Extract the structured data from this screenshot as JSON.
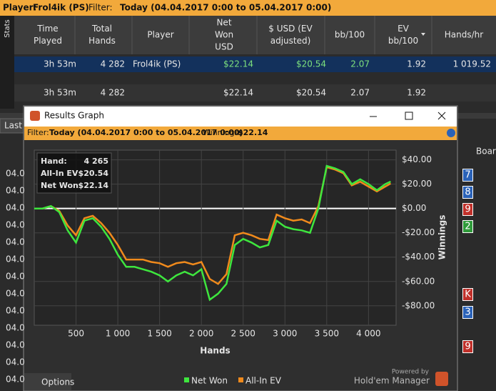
{
  "top_bar": {
    "player_label": "Player:",
    "player": "Frol4ik (PS)",
    "filter_label": "Filter:",
    "filter": "Today (04.04.2017 0:00 to 05.04.2017 0:00)"
  },
  "side_tab": "Stats",
  "table": {
    "columns": [
      [
        "Time",
        "Played"
      ],
      [
        "Total",
        "Hands"
      ],
      [
        "Player"
      ],
      [
        "Net",
        "Won",
        "USD"
      ],
      [
        "$ USD (EV",
        "adjusted)"
      ],
      [
        "bb/100"
      ],
      [
        "EV",
        "bb/100"
      ],
      [
        "Hands/hr"
      ]
    ],
    "rows": [
      [
        "3h 53m",
        "4 282",
        "Frol4ik (PS)",
        "$22.14",
        "$20.54",
        "2.07",
        "1.92",
        "1 019.52"
      ],
      [
        "3h 53m",
        "4 282",
        null,
        "$22.14",
        "$20.54",
        "2.07",
        "1.92",
        null
      ]
    ]
  },
  "lower_tab": "Last",
  "dates": [
    "04.0",
    "04.0",
    "04.0",
    "04.0",
    "04.0",
    "04.0",
    "04.0",
    "04.0",
    "04.0",
    "04.0",
    "04.0",
    "04.0",
    "04.0"
  ],
  "board_header": "Boar",
  "cards": [
    {
      "rank": "7",
      "color": "#2a62b8"
    },
    {
      "rank": "8",
      "color": "#2a62b8"
    },
    {
      "rank": "9",
      "color": "#c0302a"
    },
    {
      "rank": "2",
      "color": "#2f9a3a"
    },
    {
      "rank": "K",
      "color": "#c0302a"
    },
    {
      "rank": "3",
      "color": "#2a62b8"
    },
    {
      "rank": "9",
      "color": "#c0302a"
    }
  ],
  "window": {
    "title": "Results Graph",
    "filter_label": "Filter:",
    "filter": "Today (04.04.2017 0:00 to 05.04.2017 0:00)",
    "winnings_label": "Winnings:",
    "winnings": "$22.14",
    "options": "Options",
    "powered_by": "Powered by",
    "brand": "Hold'em Manager"
  },
  "chart_data": {
    "type": "line",
    "xlabel": "Hands",
    "ylabel": "Winnings",
    "x": [
      0,
      100,
      200,
      300,
      400,
      500,
      600,
      700,
      800,
      900,
      1000,
      1100,
      1200,
      1300,
      1400,
      1500,
      1600,
      1700,
      1800,
      1900,
      2000,
      2100,
      2200,
      2300,
      2400,
      2500,
      2600,
      2700,
      2800,
      2900,
      3000,
      3100,
      3200,
      3300,
      3400,
      3500,
      3600,
      3700,
      3800,
      3900,
      4000,
      4100,
      4200,
      4265
    ],
    "series": [
      {
        "name": "Net Won",
        "color": "#3ee63e",
        "values": [
          0,
          0,
          2,
          -3,
          -18,
          -28,
          -10,
          -8,
          -15,
          -25,
          -38,
          -48,
          -48,
          -50,
          -52,
          -55,
          -60,
          -55,
          -52,
          -55,
          -50,
          -75,
          -70,
          -62,
          -30,
          -25,
          -28,
          -32,
          -30,
          -10,
          -15,
          -17,
          -18,
          -20,
          0,
          35,
          33,
          30,
          20,
          24,
          20,
          15,
          20,
          22.14
        ]
      },
      {
        "name": "All-In EV",
        "color": "#f08a1c",
        "values": [
          0,
          0,
          2,
          -2,
          -14,
          -22,
          -8,
          -6,
          -12,
          -20,
          -30,
          -42,
          -42,
          -42,
          -44,
          -45,
          -48,
          -45,
          -44,
          -46,
          -44,
          -58,
          -62,
          -54,
          -22,
          -20,
          -22,
          -25,
          -26,
          -5,
          -8,
          -10,
          -9,
          -12,
          2,
          34,
          32,
          29,
          19,
          22,
          18,
          14,
          18,
          20.54
        ]
      }
    ],
    "xlim": [
      0,
      4330
    ],
    "ylim": [
      -96,
      48
    ],
    "xticks": [
      500,
      {
        "value": 1000,
        "label": "1 000"
      },
      {
        "value": 1500,
        "label": "1 500"
      },
      {
        "value": 2000,
        "label": "2 000"
      },
      {
        "value": 2500,
        "label": "2 500"
      },
      {
        "value": 3000,
        "label": "3 000"
      },
      {
        "value": 3500,
        "label": "3 500"
      },
      {
        "value": 4000,
        "label": "4 000"
      }
    ],
    "yticks": [
      {
        "value": 40,
        "label": "$40.00"
      },
      {
        "value": 20,
        "label": "$20.00"
      },
      {
        "value": 0,
        "label": "$0.00"
      },
      {
        "value": -20,
        "label": "-$20.00"
      },
      {
        "value": -40,
        "label": "-$40.00"
      },
      {
        "value": -60,
        "label": "-$60.00"
      },
      {
        "value": -80,
        "label": "-$80.00"
      }
    ],
    "grid": true,
    "tooltip": [
      [
        "Hand:",
        "4 265"
      ],
      [
        "All-In EV",
        "$20.54"
      ],
      [
        "Net Won",
        "$22.14"
      ]
    ]
  }
}
